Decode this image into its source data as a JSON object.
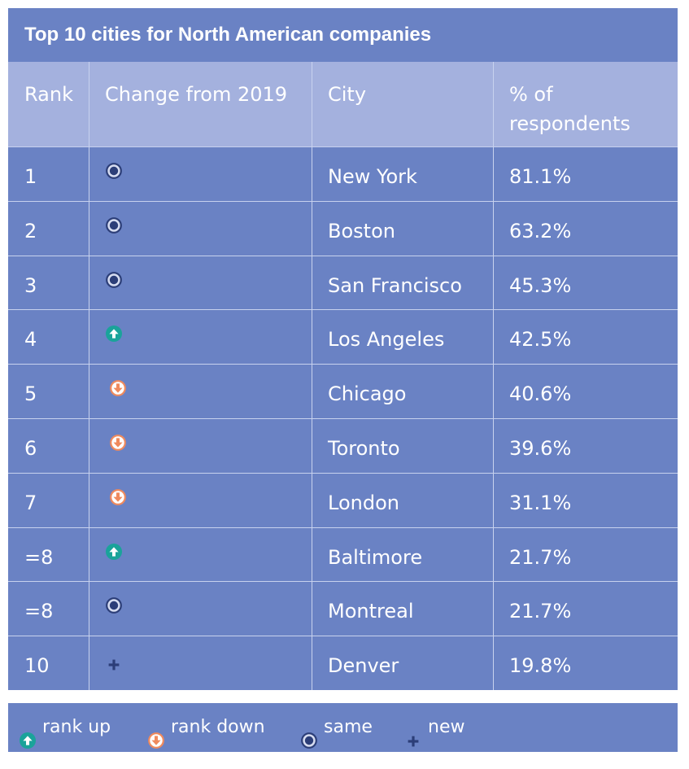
{
  "chart_data": {
    "type": "table",
    "title": "Top 10 cities for North American companies",
    "columns": [
      "Rank",
      "Change from 2019",
      "City",
      "% of respondents"
    ],
    "rows": [
      {
        "rank": "1",
        "change": "same",
        "city": "New York",
        "pct": "81.1%"
      },
      {
        "rank": "2",
        "change": "same",
        "city": "Boston",
        "pct": "63.2%"
      },
      {
        "rank": "3",
        "change": "same",
        "city": "San Francisco",
        "pct": "45.3%"
      },
      {
        "rank": "4",
        "change": "up",
        "city": "Los Angeles",
        "pct": "42.5%"
      },
      {
        "rank": "5",
        "change": "down",
        "city": "Chicago",
        "pct": "40.6%"
      },
      {
        "rank": "6",
        "change": "down",
        "city": "Toronto",
        "pct": "39.6%"
      },
      {
        "rank": "7",
        "change": "down",
        "city": "London",
        "pct": "31.1%"
      },
      {
        "rank": "=8",
        "change": "up",
        "city": "Baltimore",
        "pct": "21.7%"
      },
      {
        "rank": "=8",
        "change": "same",
        "city": "Montreal",
        "pct": "21.7%"
      },
      {
        "rank": "10",
        "change": "new",
        "city": "Denver",
        "pct": "19.8%"
      }
    ],
    "legend": [
      {
        "key": "up",
        "label": "rank up"
      },
      {
        "key": "down",
        "label": "rank down"
      },
      {
        "key": "same",
        "label": "same"
      },
      {
        "key": "new",
        "label": "new"
      }
    ]
  },
  "colors": {
    "panel": "#6a82c4",
    "header": "#a4b1de",
    "up": "#1aa39a",
    "down": "#f08a5d",
    "same": "#2c3e78",
    "new": "#2c3e78",
    "text": "#ffffff"
  },
  "icons": {
    "up": "arrow-up-circle-icon",
    "down": "arrow-down-circle-icon",
    "same": "target-dot-icon",
    "new": "plus-icon"
  }
}
